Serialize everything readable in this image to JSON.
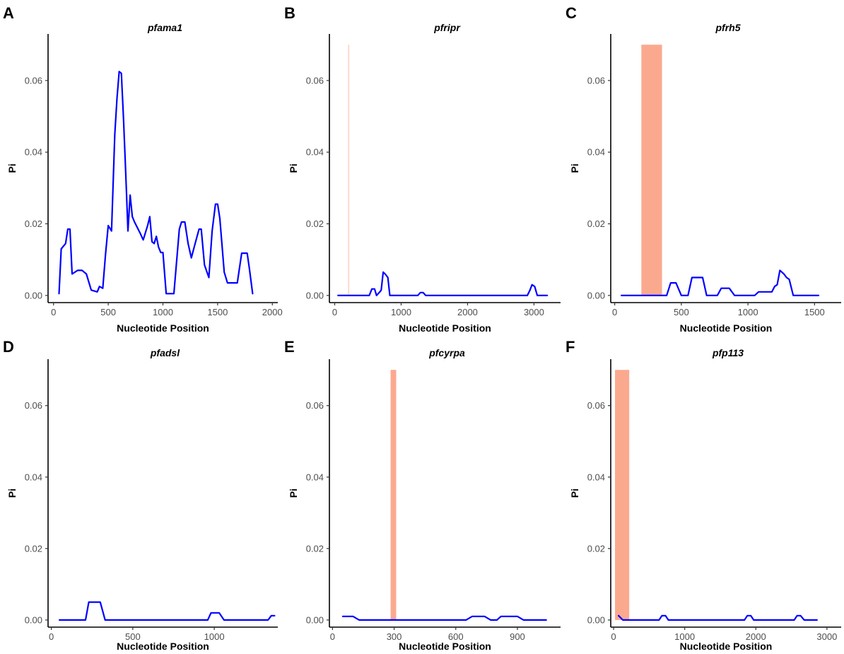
{
  "figure": {
    "xlabel_common": "Nucleotide Position",
    "ylabel_common": "Pi",
    "line_color": "#0000ff",
    "highlight_color": "#fba98e"
  },
  "chart_data": [
    {
      "type": "line",
      "panel": "A",
      "title": "pfama1",
      "xlabel": "Nucleotide Position",
      "ylabel": "Pi",
      "xlim": [
        -50,
        2050
      ],
      "ylim": [
        -0.002,
        0.073
      ],
      "x_ticks": [
        0,
        500,
        1000,
        1500,
        2000
      ],
      "x_tick_labels": [
        "0",
        "500",
        "1000",
        "1500",
        "2000"
      ],
      "y_ticks": [
        0,
        0.02,
        0.04,
        0.06
      ],
      "y_tick_labels": [
        "0.00",
        "0.02",
        "0.04",
        "0.06"
      ],
      "highlight": null,
      "series": [
        {
          "name": "Pi",
          "x": [
            50,
            70,
            110,
            130,
            150,
            170,
            220,
            260,
            300,
            345,
            400,
            420,
            450,
            475,
            500,
            530,
            560,
            580,
            600,
            620,
            640,
            660,
            680,
            700,
            720,
            740,
            790,
            820,
            860,
            880,
            900,
            920,
            940,
            960,
            980,
            1000,
            1030,
            1050,
            1100,
            1150,
            1170,
            1200,
            1230,
            1260,
            1290,
            1330,
            1350,
            1380,
            1420,
            1450,
            1480,
            1500,
            1520,
            1560,
            1590,
            1620,
            1680,
            1720,
            1770,
            1790,
            1820
          ],
          "y": [
            0.0005,
            0.013,
            0.0145,
            0.0185,
            0.0185,
            0.006,
            0.007,
            0.007,
            0.006,
            0.0015,
            0.001,
            0.0025,
            0.002,
            0.0115,
            0.0195,
            0.018,
            0.045,
            0.055,
            0.0625,
            0.062,
            0.049,
            0.034,
            0.018,
            0.028,
            0.022,
            0.0205,
            0.0175,
            0.0155,
            0.0195,
            0.022,
            0.015,
            0.0145,
            0.0165,
            0.0135,
            0.012,
            0.012,
            0.0005,
            0.0005,
            0.0005,
            0.0185,
            0.0205,
            0.0205,
            0.0145,
            0.0105,
            0.014,
            0.0185,
            0.0185,
            0.0085,
            0.005,
            0.018,
            0.0255,
            0.0255,
            0.0215,
            0.0065,
            0.0035,
            0.0035,
            0.0035,
            0.0118,
            0.0118,
            0.0075,
            0.0005
          ]
        }
      ]
    },
    {
      "type": "line",
      "panel": "B",
      "title": "pfripr",
      "xlabel": "Nucleotide Position",
      "ylabel": "Pi",
      "xlim": [
        -80,
        3400
      ],
      "ylim": [
        -0.002,
        0.073
      ],
      "x_ticks": [
        0,
        1000,
        2000,
        3000
      ],
      "x_tick_labels": [
        "0",
        "1000",
        "2000",
        "3000"
      ],
      "y_ticks": [
        0,
        0.02,
        0.04,
        0.06
      ],
      "y_tick_labels": [
        "0.00",
        "0.02",
        "0.04",
        "0.06"
      ],
      "highlight": {
        "x0": 200,
        "x1": 220,
        "y_top": 0.07,
        "opacity": 0.45
      },
      "series": [
        {
          "name": "Pi",
          "x": [
            50,
            450,
            520,
            560,
            600,
            630,
            680,
            700,
            730,
            760,
            800,
            830,
            1250,
            1290,
            1330,
            1370,
            2900,
            2940,
            2970,
            3010,
            3050,
            3200
          ],
          "y": [
            0,
            0,
            0,
            0.0018,
            0.0018,
            0,
            0.001,
            0.0015,
            0.0065,
            0.006,
            0.005,
            0,
            0,
            0.0008,
            0.0008,
            0,
            0,
            0.0015,
            0.003,
            0.0025,
            0,
            0
          ]
        }
      ]
    },
    {
      "type": "line",
      "panel": "C",
      "title": "pfrh5",
      "xlabel": "Nucleotide Position",
      "ylabel": "Pi",
      "xlim": [
        -30,
        1700
      ],
      "ylim": [
        -0.002,
        0.073
      ],
      "x_ticks": [
        0,
        500,
        1000,
        1500
      ],
      "x_tick_labels": [
        "0",
        "500",
        "1000",
        "1500"
      ],
      "y_ticks": [
        0,
        0.02,
        0.04,
        0.06
      ],
      "y_tick_labels": [
        "0.00",
        "0.02",
        "0.04",
        "0.06"
      ],
      "highlight": {
        "x0": 200,
        "x1": 355,
        "y_top": 0.07,
        "opacity": 1.0
      },
      "series": [
        {
          "name": "Pi",
          "x": [
            50,
            350,
            390,
            420,
            460,
            500,
            550,
            580,
            620,
            660,
            690,
            720,
            770,
            800,
            860,
            900,
            1050,
            1080,
            1180,
            1200,
            1220,
            1240,
            1270,
            1290,
            1310,
            1340,
            1530
          ],
          "y": [
            0,
            0,
            0,
            0.0035,
            0.0035,
            0,
            0,
            0.005,
            0.005,
            0.005,
            0,
            0,
            0,
            0.002,
            0.002,
            0,
            0,
            0.001,
            0.001,
            0.0025,
            0.003,
            0.007,
            0.006,
            0.005,
            0.0045,
            0,
            0
          ]
        }
      ]
    },
    {
      "type": "line",
      "panel": "D",
      "title": "pfadsl",
      "xlabel": "Nucleotide Position",
      "ylabel": "Pi",
      "xlim": [
        -20,
        1390
      ],
      "ylim": [
        -0.002,
        0.073
      ],
      "x_ticks": [
        0,
        500,
        1000
      ],
      "x_tick_labels": [
        "0",
        "500",
        "1000"
      ],
      "y_ticks": [
        0,
        0.02,
        0.04,
        0.06
      ],
      "y_tick_labels": [
        "0.00",
        "0.02",
        "0.04",
        "0.06"
      ],
      "highlight": null,
      "series": [
        {
          "name": "Pi",
          "x": [
            50,
            210,
            230,
            300,
            330,
            960,
            980,
            1030,
            1060,
            1330,
            1350,
            1370
          ],
          "y": [
            0,
            0,
            0.005,
            0.005,
            0,
            0,
            0.002,
            0.002,
            0,
            0,
            0.0012,
            0.0012
          ]
        }
      ]
    },
    {
      "type": "line",
      "panel": "E",
      "title": "pfcyrpa",
      "xlabel": "Nucleotide Position",
      "ylabel": "Pi",
      "xlim": [
        -15,
        1110
      ],
      "ylim": [
        -0.002,
        0.073
      ],
      "x_ticks": [
        0,
        300,
        600,
        900
      ],
      "x_tick_labels": [
        "0",
        "300",
        "600",
        "900"
      ],
      "y_ticks": [
        0,
        0.02,
        0.04,
        0.06
      ],
      "y_tick_labels": [
        "0.00",
        "0.02",
        "0.04",
        "0.06"
      ],
      "highlight": {
        "x0": 283,
        "x1": 310,
        "y_top": 0.07,
        "opacity": 1.0
      },
      "series": [
        {
          "name": "Pi",
          "x": [
            50,
            100,
            130,
            650,
            680,
            740,
            770,
            800,
            820,
            840,
            900,
            930,
            1040
          ],
          "y": [
            0.001,
            0.001,
            0,
            0,
            0.001,
            0.001,
            0,
            0,
            0.001,
            0.001,
            0.001,
            0,
            0
          ]
        }
      ]
    },
    {
      "type": "line",
      "panel": "F",
      "title": "pfp113",
      "xlabel": "Nucleotide Position",
      "ylabel": "Pi",
      "xlim": [
        -40,
        3200
      ],
      "ylim": [
        -0.002,
        0.073
      ],
      "x_ticks": [
        0,
        1000,
        2000,
        3000
      ],
      "x_tick_labels": [
        "0",
        "1000",
        "2000",
        "3000"
      ],
      "y_ticks": [
        0,
        0.02,
        0.04,
        0.06
      ],
      "y_tick_labels": [
        "0.00",
        "0.02",
        "0.04",
        "0.06"
      ],
      "highlight": {
        "x0": 20,
        "x1": 220,
        "y_top": 0.07,
        "opacity": 1.0
      },
      "series": [
        {
          "name": "Pi",
          "x": [
            70,
            130,
            170,
            640,
            680,
            730,
            770,
            1840,
            1880,
            1930,
            1970,
            2540,
            2580,
            2630,
            2680,
            2860
          ],
          "y": [
            0.0012,
            0,
            0,
            0,
            0.0012,
            0.0012,
            0,
            0,
            0.0012,
            0.0012,
            0,
            0,
            0.0012,
            0.0012,
            0,
            0
          ]
        }
      ]
    }
  ]
}
